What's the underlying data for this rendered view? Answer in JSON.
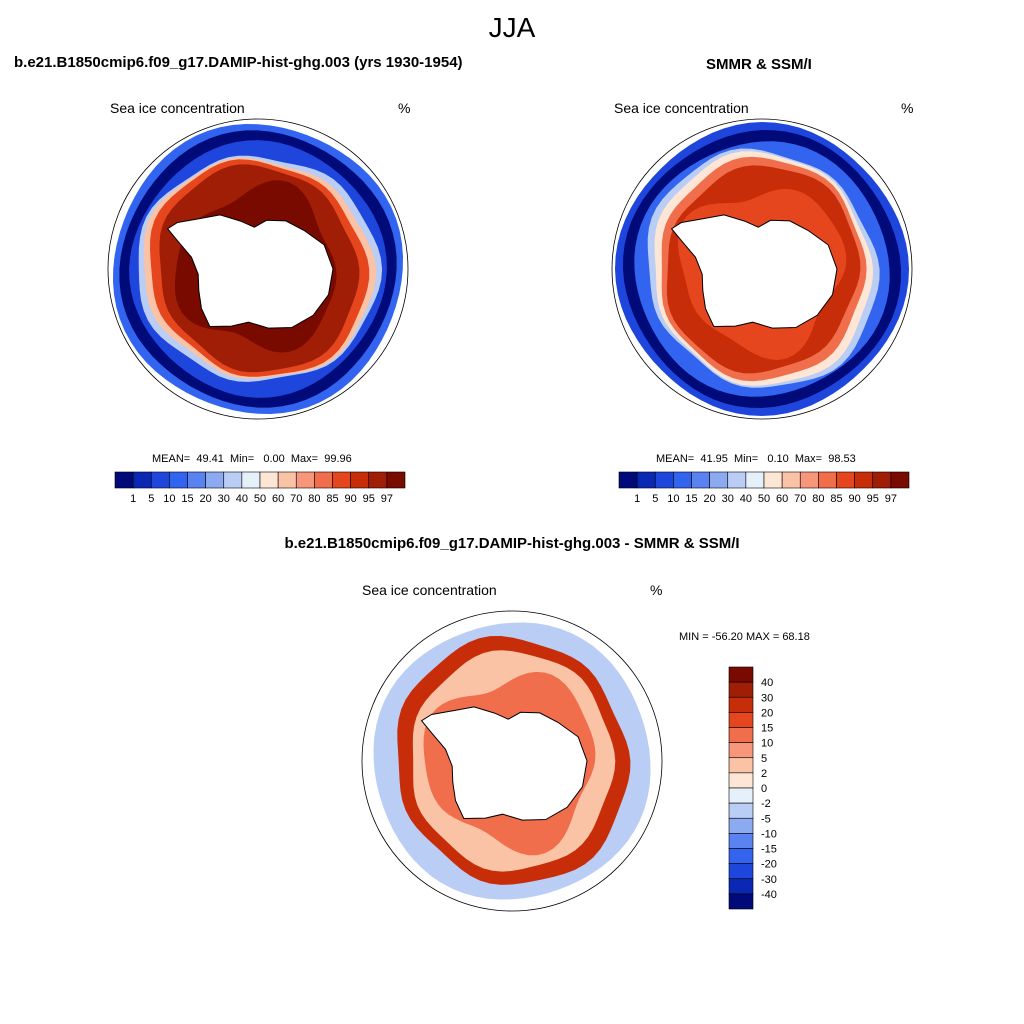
{
  "figure": {
    "season": "JJA"
  },
  "colors": {
    "land": "#ffffff",
    "ring_outline": "#000000",
    "coast": "#000000"
  },
  "panels": [
    {
      "id": "model",
      "title": "b.e21.B1850cmip6.f09_g17.DAMIP-hist-ghg.003 (yrs 1930-1954)",
      "left_label": "Sea ice concentration",
      "right_label": "%",
      "stats": {
        "mean_label": "MEAN=",
        "mean": "49.41",
        "min_label": "Min=",
        "min": "0.00",
        "max_label": "Max=",
        "max": "99.96"
      }
    },
    {
      "id": "obs",
      "title": "SMMR & SSM/I",
      "left_label": "Sea ice concentration",
      "right_label": "%",
      "stats": {
        "mean_label": "MEAN=",
        "mean": "41.95",
        "min_label": "Min=",
        "min": "0.10",
        "max_label": "Max=",
        "max": "98.53"
      }
    },
    {
      "id": "diff",
      "title": "b.e21.B1850cmip6.f09_g17.DAMIP-hist-ghg.003 - SMMR & SSM/I",
      "left_label": "Sea ice concentration",
      "right_label": "%",
      "stats_text": "MIN = -56.20 MAX =  68.18"
    }
  ],
  "chart_data": [
    {
      "type": "heatmap",
      "projection": "south-polar-stereographic",
      "variable": "Sea ice concentration",
      "units": "%",
      "season": "JJA",
      "stats": {
        "mean": 49.41,
        "min": 0.0,
        "max": 99.96
      },
      "colorbar": {
        "orientation": "horizontal",
        "levels": [
          1,
          5,
          10,
          15,
          20,
          30,
          40,
          50,
          60,
          70,
          80,
          85,
          90,
          95,
          97
        ],
        "tick_labels": [
          "1",
          "5",
          "10",
          "15",
          "20",
          "30",
          "40",
          "50",
          "60",
          "70",
          "80",
          "85",
          "90",
          "95",
          "97"
        ],
        "colors": [
          "#000a78",
          "#0a28b4",
          "#1e46dc",
          "#3264f0",
          "#5a82f0",
          "#8caaf0",
          "#b9cdf5",
          "#e6f0fa",
          "#fde6d5",
          "#fbc3a5",
          "#f7967a",
          "#f06e4b",
          "#e6461e",
          "#c82d0a",
          "#a01e05",
          "#780a00"
        ]
      },
      "rings": [
        {
          "level_index": 3,
          "outer_r": 0.98,
          "shape": "wide"
        },
        {
          "level_index": 0,
          "outer_r": 0.93,
          "shape": "wide"
        },
        {
          "level_index": 2,
          "outer_r": 0.86,
          "shape": "wide"
        },
        {
          "level_index": 6,
          "outer_r": 0.82,
          "shape": "mid"
        },
        {
          "level_index": 9,
          "outer_r": 0.79,
          "shape": "mid"
        },
        {
          "level_index": 12,
          "outer_r": 0.76,
          "shape": "mid"
        },
        {
          "level_index": 14,
          "outer_r": 0.71,
          "shape": "mid"
        },
        {
          "level_index": 15,
          "outer_r": 0.62,
          "shape": "inner"
        }
      ]
    },
    {
      "type": "heatmap",
      "projection": "south-polar-stereographic",
      "variable": "Sea ice concentration",
      "units": "%",
      "season": "JJA",
      "stats": {
        "mean": 41.95,
        "min": 0.1,
        "max": 98.53
      },
      "colorbar": {
        "orientation": "horizontal",
        "levels": [
          1,
          5,
          10,
          15,
          20,
          30,
          40,
          50,
          60,
          70,
          80,
          85,
          90,
          95,
          97
        ],
        "tick_labels": [
          "1",
          "5",
          "10",
          "15",
          "20",
          "30",
          "40",
          "50",
          "60",
          "70",
          "80",
          "85",
          "90",
          "95",
          "97"
        ],
        "colors": [
          "#000a78",
          "#0a28b4",
          "#1e46dc",
          "#3264f0",
          "#5a82f0",
          "#8caaf0",
          "#b9cdf5",
          "#e6f0fa",
          "#fde6d5",
          "#fbc3a5",
          "#f7967a",
          "#f06e4b",
          "#e6461e",
          "#c82d0a",
          "#a01e05",
          "#780a00"
        ]
      },
      "rings": [
        {
          "level_index": 2,
          "outer_r": 0.98,
          "shape": "wide"
        },
        {
          "level_index": 0,
          "outer_r": 0.93,
          "shape": "wide"
        },
        {
          "level_index": 3,
          "outer_r": 0.86,
          "shape": "wide"
        },
        {
          "level_index": 6,
          "outer_r": 0.82,
          "shape": "mid"
        },
        {
          "level_index": 8,
          "outer_r": 0.79,
          "shape": "mid"
        },
        {
          "level_index": 11,
          "outer_r": 0.75,
          "shape": "mid"
        },
        {
          "level_index": 13,
          "outer_r": 0.7,
          "shape": "mid"
        },
        {
          "level_index": 12,
          "outer_r": 0.63,
          "shape": "inner"
        }
      ]
    },
    {
      "type": "heatmap",
      "projection": "south-polar-stereographic",
      "variable": "Sea ice concentration",
      "units": "%",
      "season": "JJA",
      "stats": {
        "min": -56.2,
        "max": 68.18
      },
      "colorbar": {
        "orientation": "vertical",
        "levels": [
          -40,
          -30,
          -20,
          -15,
          -10,
          -5,
          -2,
          0,
          2,
          5,
          10,
          15,
          20,
          30,
          40
        ],
        "tick_labels": [
          "-40",
          "-30",
          "-20",
          "-15",
          "-10",
          "-5",
          "-2",
          "0",
          "2",
          "5",
          "10",
          "15",
          "20",
          "30",
          "40"
        ],
        "colors": [
          "#000a78",
          "#0a28b4",
          "#1e46dc",
          "#3264f0",
          "#5a82f0",
          "#8caaf0",
          "#b9cdf5",
          "#e6f0fa",
          "#fde6d5",
          "#fbc3a5",
          "#f7967a",
          "#f06e4b",
          "#e6461e",
          "#c82d0a",
          "#a01e05",
          "#780a00"
        ]
      },
      "rings": [
        {
          "level_index": 6,
          "outer_r": 0.94,
          "shape": "wide"
        },
        {
          "level_index": 13,
          "outer_r": 0.84,
          "shape": "mid"
        },
        {
          "level_index": 9,
          "outer_r": 0.74,
          "shape": "mid"
        },
        {
          "level_index": 11,
          "outer_r": 0.66,
          "shape": "inner"
        }
      ]
    }
  ]
}
